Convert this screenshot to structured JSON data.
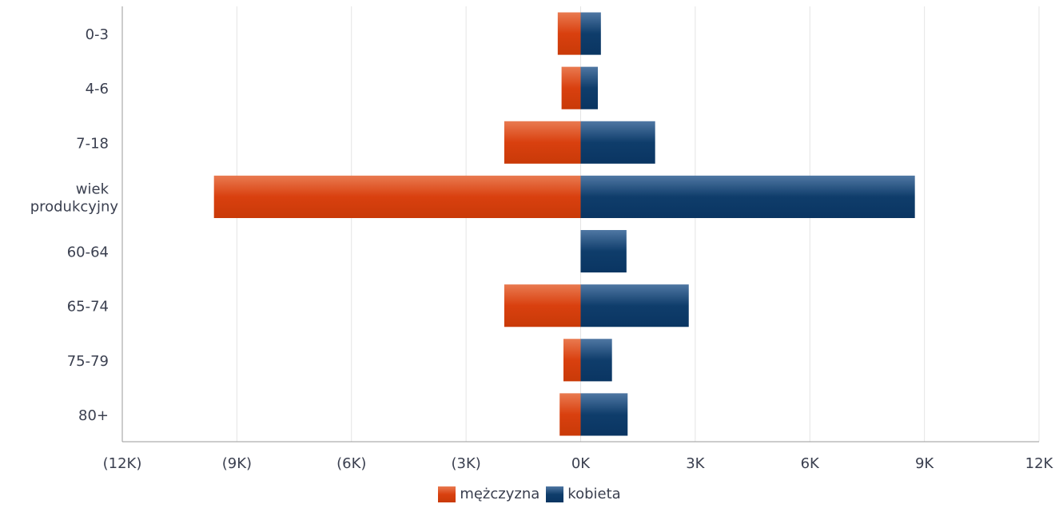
{
  "chart_data": {
    "type": "bar",
    "orientation": "horizontal-diverging",
    "categories": [
      "0-3",
      "4-6",
      "7-18",
      "wiek produkcyjny",
      "60-64",
      "65-74",
      "75-79",
      "80+"
    ],
    "series": [
      {
        "name": "mężczyzna",
        "values": [
          -600,
          -500,
          -2000,
          -9600,
          0,
          -2000,
          -450,
          -550
        ],
        "color": "#d9400f"
      },
      {
        "name": "kobieta",
        "values": [
          530,
          450,
          1950,
          8750,
          1200,
          2830,
          820,
          1230
        ],
        "color": "#0f3d6b"
      }
    ],
    "xlim": [
      -12000,
      12000
    ],
    "xticks": [
      -12000,
      -9000,
      -6000,
      -3000,
      0,
      3000,
      6000,
      9000,
      12000
    ],
    "xtick_labels": [
      "(12K)",
      "(9K)",
      "(6K)",
      "(3K)",
      "0K",
      "3K",
      "6K",
      "9K",
      "12K"
    ],
    "grid": true,
    "legend_position": "bottom-center",
    "title": "",
    "xlabel": "",
    "ylabel": ""
  },
  "legend": {
    "male_label": "mężczyzna",
    "female_label": "kobieta"
  }
}
